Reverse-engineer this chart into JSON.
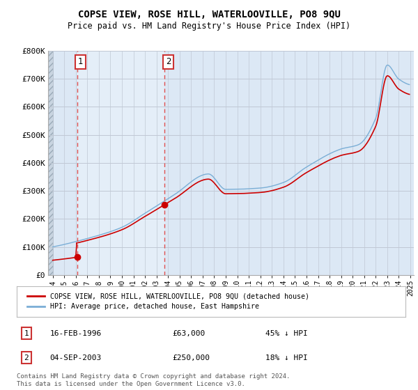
{
  "title": "COPSE VIEW, ROSE HILL, WATERLOOVILLE, PO8 9QU",
  "subtitle": "Price paid vs. HM Land Registry's House Price Index (HPI)",
  "ylim": [
    0,
    800000
  ],
  "yticks": [
    0,
    100000,
    200000,
    300000,
    400000,
    500000,
    600000,
    700000,
    800000
  ],
  "ytick_labels": [
    "£0",
    "£100K",
    "£200K",
    "£300K",
    "£400K",
    "£500K",
    "£600K",
    "£700K",
    "£800K"
  ],
  "sale1_year": 1996,
  "sale1_month": 2,
  "sale1_price": 63000,
  "sale2_year": 2003,
  "sale2_month": 9,
  "sale2_price": 250000,
  "sale1_text": "16-FEB-1996",
  "sale1_price_text": "£63,000",
  "sale1_pct": "45% ↓ HPI",
  "sale2_text": "04-SEP-2003",
  "sale2_price_text": "£250,000",
  "sale2_pct": "18% ↓ HPI",
  "red_line_color": "#cc0000",
  "blue_line_color": "#7aaed6",
  "vline_color": "#e05050",
  "marker_color": "#cc0000",
  "legend_label_red": "COPSE VIEW, ROSE HILL, WATERLOOVILLE, PO8 9QU (detached house)",
  "legend_label_blue": "HPI: Average price, detached house, East Hampshire",
  "footnote": "Contains HM Land Registry data © Crown copyright and database right 2024.\nThis data is licensed under the Open Government Licence v3.0.",
  "background_color": "#ffffff",
  "plot_bg_color": "#dce8f5",
  "highlight_color": "#e4eef8",
  "hatch_color": "#c8d4e0",
  "grid_color": "#c0c8d4"
}
